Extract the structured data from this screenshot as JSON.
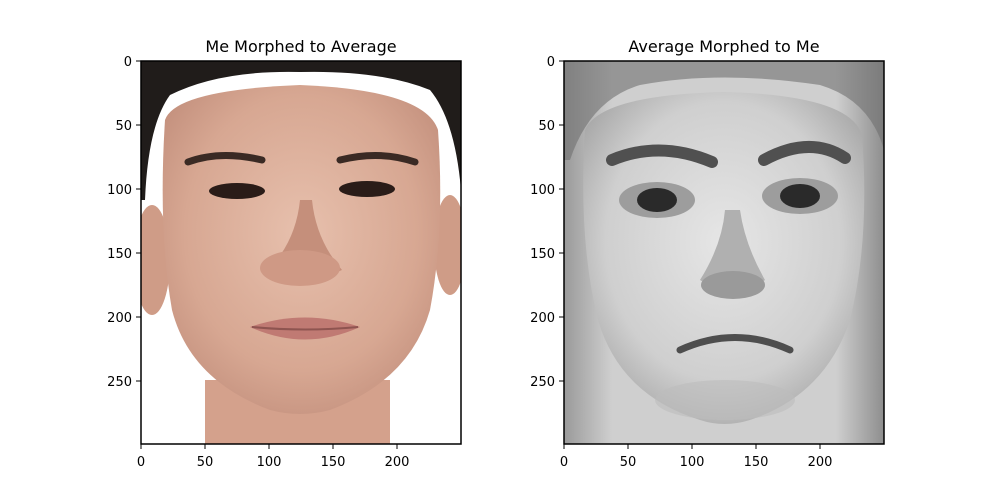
{
  "figure": {
    "panels": [
      {
        "title": "Me Morphed to Average",
        "x_ticks": [
          "0",
          "50",
          "100",
          "150",
          "200"
        ],
        "y_ticks": [
          "0",
          "50",
          "100",
          "150",
          "200",
          "250"
        ],
        "image_description_icon": "color-face-photo-icon"
      },
      {
        "title": "Average Morphed to Me",
        "x_ticks": [
          "0",
          "50",
          "100",
          "150",
          "200"
        ],
        "y_ticks": [
          "0",
          "50",
          "100",
          "150",
          "200",
          "250"
        ],
        "image_description_icon": "grayscale-face-photo-icon"
      }
    ],
    "colors": {
      "skin_warm": "#d9aa95",
      "hair_dark": "#201c1a",
      "gray_face": "#c8c8c8"
    }
  }
}
